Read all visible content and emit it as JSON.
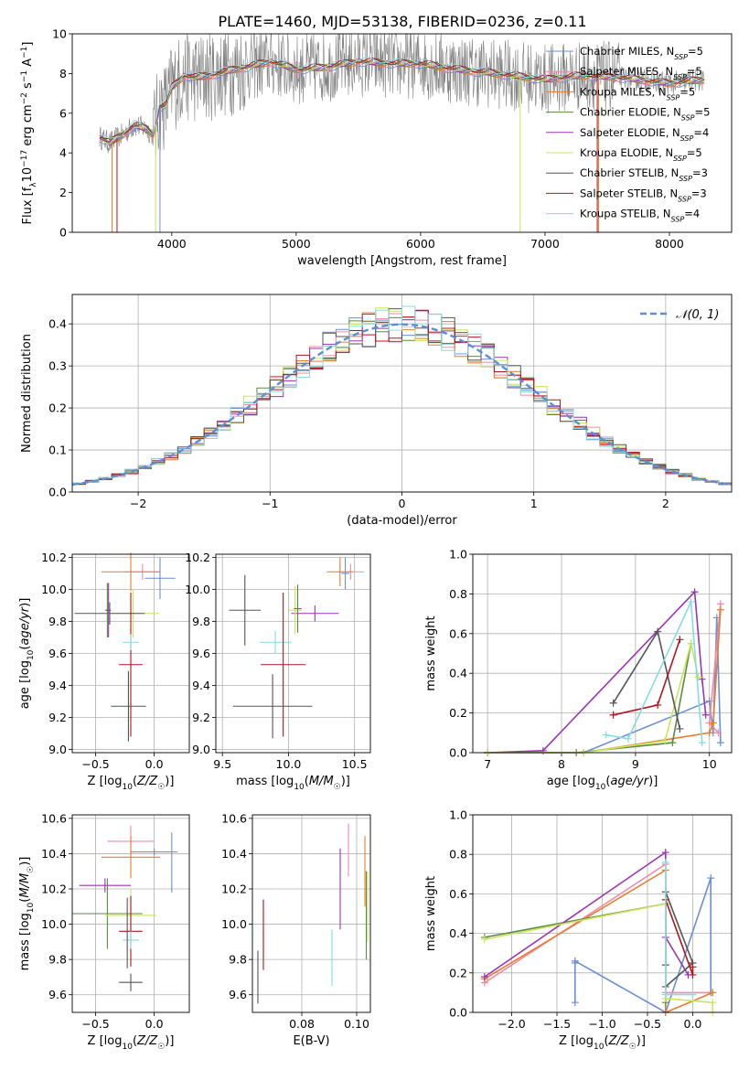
{
  "figure_title": "PLATE=1460, MJD=53138, FIBERID=0236, z=0.11",
  "colors": {
    "chabrier_miles": "#6a8fd8",
    "salpeter_miles": "#f08aa8",
    "kroupa_miles": "#e87d2c",
    "chabrier_elodie": "#5a8a40",
    "salpeter_elodie": "#9a34b4",
    "kroupa_elodie": "#c8e65a",
    "chabrier_stelib": "#555555",
    "salpeter_stelib": "#b0141e",
    "kroupa_stelib": "#86dce0",
    "data": "#808080",
    "gauss": "#5b8fd6"
  },
  "chart_data": [
    {
      "id": "spectrum",
      "type": "line",
      "title": "PLATE=1460, MJD=53138, FIBERID=0236, z=0.11",
      "xlabel": "wavelength [Angstrom, rest frame]",
      "ylabel": "Flux [f_λ 10^-17 erg cm^-2 s^-1 A^-1]",
      "xlim": [
        3200,
        8500
      ],
      "ylim": [
        0,
        10
      ],
      "xticks": [
        4000,
        5000,
        6000,
        7000,
        8000
      ],
      "yticks": [
        0,
        2,
        4,
        6,
        8,
        10
      ],
      "grid": false,
      "legend_position": "right",
      "legend": [
        {
          "label": "Chabrier MILES, N",
          "sub": "SSP",
          "suffix": "=5",
          "color_key": "chabrier_miles"
        },
        {
          "label": "Salpeter MILES, N",
          "sub": "SSP",
          "suffix": "=5",
          "color_key": "salpeter_miles"
        },
        {
          "label": "Kroupa MILES, N",
          "sub": "SSP",
          "suffix": "=5",
          "color_key": "kroupa_miles"
        },
        {
          "label": "Chabrier ELODIE, N",
          "sub": "SSP",
          "suffix": "=5",
          "color_key": "chabrier_elodie"
        },
        {
          "label": "Salpeter ELODIE, N",
          "sub": "SSP",
          "suffix": "=4",
          "color_key": "salpeter_elodie"
        },
        {
          "label": "Kroupa ELODIE, N",
          "sub": "SSP",
          "suffix": "=5",
          "color_key": "kroupa_elodie"
        },
        {
          "label": "Chabrier STELIB, N",
          "sub": "SSP",
          "suffix": "=3",
          "color_key": "chabrier_stelib"
        },
        {
          "label": "Salpeter STELIB, N",
          "sub": "SSP",
          "suffix": "=3",
          "color_key": "salpeter_stelib"
        },
        {
          "label": "Kroupa STELIB, N",
          "sub": "SSP",
          "suffix": "=4",
          "color_key": "kroupa_stelib"
        }
      ],
      "continuum": {
        "x": [
          3420,
          3500,
          3600,
          3700,
          3800,
          3850,
          3900,
          3950,
          4000,
          4100,
          4200,
          4300,
          4500,
          4800,
          5000,
          5200,
          5500,
          5800,
          6000,
          6300,
          6600,
          7000,
          7300,
          7600,
          8000,
          8280
        ],
        "y": [
          4.8,
          4.5,
          4.9,
          5.4,
          5.2,
          4.9,
          6.3,
          6.4,
          7.3,
          7.9,
          7.8,
          7.9,
          8.2,
          8.6,
          8.2,
          8.3,
          8.6,
          8.5,
          8.5,
          8.2,
          8.0,
          7.7,
          7.9,
          7.8,
          7.5,
          7.7
        ]
      },
      "dropouts": [
        {
          "x": 3520,
          "color_key": "kroupa_miles"
        },
        {
          "x": 3560,
          "color_key": "salpeter_stelib"
        },
        {
          "x": 3870,
          "color_key": "kroupa_elodie"
        },
        {
          "x": 3905,
          "color_key": "chabrier_miles"
        },
        {
          "x": 6800,
          "color_key": "kroupa_elodie"
        },
        {
          "x": 7420,
          "color_key": "salpeter_stelib"
        },
        {
          "x": 7430,
          "color_key": "kroupa_miles"
        }
      ],
      "data_noise_range": [
        3850,
        7600
      ]
    },
    {
      "id": "residuals",
      "type": "step",
      "xlabel": "(data-model)/error",
      "ylabel": "Normed distribution",
      "xlim": [
        -2.5,
        2.5
      ],
      "ylim": [
        0,
        0.47
      ],
      "xticks": [
        -2,
        -1,
        0,
        1,
        2
      ],
      "yticks": [
        0.0,
        0.1,
        0.2,
        0.3,
        0.4
      ],
      "grid": true,
      "legend_position": "upper right",
      "legend": [
        {
          "label": "𝒩(0, 1)",
          "color_key": "gauss",
          "dashed": true
        }
      ],
      "bin_width": 0.1
    },
    {
      "id": "age_vs_Z",
      "type": "errorbar",
      "xlabel": "Z [log10(Z/Z☉)]",
      "ylabel": "age [log10(age/yr)]",
      "xlim": [
        -0.7,
        0.3
      ],
      "ylim": [
        8.98,
        10.22
      ],
      "xticks": [
        -0.5,
        0.0
      ],
      "yticks": [
        9.0,
        9.2,
        9.4,
        9.6,
        9.8,
        10.0,
        10.2
      ],
      "grid": true,
      "points": [
        {
          "color_key": "chabrier_miles",
          "x": 0.05,
          "xerr": 0.13,
          "y": 10.07,
          "yerr": 0.13
        },
        {
          "color_key": "salpeter_miles",
          "x": -0.1,
          "xerr": 0.15,
          "y": 10.11,
          "yerr": 0.05
        },
        {
          "color_key": "kroupa_miles",
          "x": -0.2,
          "xerr": 0.25,
          "y": 10.11,
          "yerr": 0.12
        },
        {
          "color_key": "chabrier_elodie",
          "x": -0.4,
          "xerr": 0.02,
          "y": 9.87,
          "yerr": 0.17
        },
        {
          "color_key": "salpeter_elodie",
          "x": -0.39,
          "xerr": 0.02,
          "y": 9.87,
          "yerr": 0.17
        },
        {
          "color_key": "kroupa_elodie",
          "x": -0.18,
          "xerr": 0.22,
          "y": 9.85,
          "yerr": 0.15
        },
        {
          "color_key": "chabrier_stelib",
          "x": -0.38,
          "xerr": 0.3,
          "y": 9.85,
          "yerr": 0.07
        },
        {
          "color_key": "salpeter_stelib",
          "x": -0.2,
          "xerr": 0.1,
          "y": 9.53,
          "yerr": 0.45
        },
        {
          "color_key": "kroupa_stelib",
          "x": -0.2,
          "xerr": 0.07,
          "y": 9.67,
          "yerr": 0.05
        },
        {
          "color_key": "chabrier_stelib",
          "x": -0.22,
          "xerr": 0.15,
          "y": 9.27,
          "yerr": 0.22
        }
      ]
    },
    {
      "id": "age_vs_mass",
      "type": "errorbar",
      "xlabel": "mass [log10(M/M☉)]",
      "ylabel": "",
      "xlim": [
        9.45,
        10.62
      ],
      "ylim": [
        8.98,
        10.22
      ],
      "xticks": [
        9.5,
        10.0,
        10.5
      ],
      "yticks": [
        9.0,
        9.2,
        9.4,
        9.6,
        9.8,
        10.0,
        10.2
      ],
      "grid": true,
      "points": [
        {
          "color_key": "chabrier_miles",
          "x": 10.43,
          "xerr": 0.03,
          "y": 10.1,
          "yerr": 0.1
        },
        {
          "color_key": "salpeter_miles",
          "x": 10.47,
          "xerr": 0.1,
          "y": 10.11,
          "yerr": 0.05
        },
        {
          "color_key": "kroupa_miles",
          "x": 10.39,
          "xerr": 0.1,
          "y": 10.11,
          "yerr": 0.09
        },
        {
          "color_key": "salpeter_elodie",
          "x": 10.2,
          "xerr": 0.18,
          "y": 9.85,
          "yerr": 0.05
        },
        {
          "color_key": "kroupa_elodie",
          "x": 10.05,
          "xerr": 0.05,
          "y": 9.87,
          "yerr": 0.15
        },
        {
          "color_key": "chabrier_elodie",
          "x": 10.07,
          "xerr": 0.03,
          "y": 9.88,
          "yerr": 0.15
        },
        {
          "color_key": "chabrier_stelib",
          "x": 9.67,
          "xerr": 0.12,
          "y": 9.87,
          "yerr": 0.22
        },
        {
          "color_key": "kroupa_stelib",
          "x": 9.9,
          "xerr": 0.12,
          "y": 9.67,
          "yerr": 0.07
        },
        {
          "color_key": "salpeter_stelib",
          "x": 9.96,
          "xerr": 0.17,
          "y": 9.53,
          "yerr": 0.45
        },
        {
          "color_key": "chabrier_stelib",
          "x": 9.88,
          "xerr": 0.3,
          "y": 9.27,
          "yerr": 0.2
        }
      ]
    },
    {
      "id": "weight_vs_age",
      "type": "line",
      "xlabel": "age [log10(age/yr)]",
      "ylabel": "mass weight",
      "xlim": [
        6.8,
        10.3
      ],
      "ylim": [
        0.0,
        1.0
      ],
      "xticks": [
        7,
        8,
        9,
        10
      ],
      "yticks": [
        0.0,
        0.2,
        0.4,
        0.6,
        0.8,
        1.0
      ],
      "grid": true,
      "series": [
        {
          "color_key": "chabrier_miles",
          "x": [
            7.0,
            8.3,
            10.0,
            10.05,
            10.1,
            10.15
          ],
          "y": [
            0.0,
            0.0,
            0.26,
            0.1,
            0.68,
            0.05
          ]
        },
        {
          "color_key": "salpeter_miles",
          "x": [
            10.15,
            10.0,
            10.12
          ],
          "y": [
            0.75,
            0.15,
            0.1
          ]
        },
        {
          "color_key": "kroupa_miles",
          "x": [
            7.0,
            8.3,
            10.0,
            10.05,
            10.15
          ],
          "y": [
            0.0,
            0.0,
            0.1,
            0.15,
            0.72
          ]
        },
        {
          "color_key": "chabrier_elodie",
          "x": [
            7.0,
            8.2,
            9.5,
            9.75
          ],
          "y": [
            0.0,
            0.0,
            0.05,
            0.55
          ]
        },
        {
          "color_key": "salpeter_elodie",
          "x": [
            7.0,
            7.75,
            9.8,
            9.9,
            9.95
          ],
          "y": [
            0.0,
            0.01,
            0.81,
            0.37,
            0.19
          ]
        },
        {
          "color_key": "kroupa_elodie",
          "x": [
            7.0,
            8.3,
            9.4,
            9.75,
            9.85
          ],
          "y": [
            0.0,
            0.0,
            0.06,
            0.55,
            0.38
          ]
        },
        {
          "color_key": "chabrier_stelib",
          "x": [
            8.7,
            9.3,
            9.6
          ],
          "y": [
            0.25,
            0.61,
            0.12
          ]
        },
        {
          "color_key": "salpeter_stelib",
          "x": [
            8.7,
            9.3,
            9.6
          ],
          "y": [
            0.19,
            0.24,
            0.57
          ]
        },
        {
          "color_key": "kroupa_stelib",
          "x": [
            8.6,
            8.9,
            9.75,
            9.9
          ],
          "y": [
            0.09,
            0.07,
            0.76,
            0.05
          ]
        }
      ]
    },
    {
      "id": "mass_vs_Z",
      "type": "errorbar",
      "xlabel": "Z [log10(Z/Z☉)]",
      "ylabel": "mass [log10(M/M☉)]",
      "xlim": [
        -0.7,
        0.3
      ],
      "ylim": [
        9.5,
        10.62
      ],
      "xticks": [
        -0.5,
        0.0
      ],
      "yticks": [
        9.6,
        9.8,
        10.0,
        10.2,
        10.4,
        10.6
      ],
      "grid": true,
      "points": [
        {
          "color_key": "chabrier_miles",
          "x": 0.0,
          "xerr": 0.2,
          "y": 10.41,
          "yerr": 0.02
        },
        {
          "color_key": "chabrier_miles",
          "x": 0.15,
          "xerr": 0.0,
          "y": 10.35,
          "yerr": 0.17
        },
        {
          "color_key": "salpeter_miles",
          "x": -0.2,
          "xerr": 0.2,
          "y": 10.47,
          "yerr": 0.09
        },
        {
          "color_key": "kroupa_miles",
          "x": -0.2,
          "xerr": 0.25,
          "y": 10.38,
          "yerr": 0.12
        },
        {
          "color_key": "salpeter_elodie",
          "x": -0.42,
          "xerr": 0.22,
          "y": 10.22,
          "yerr": 0.04
        },
        {
          "color_key": "chabrier_elodie",
          "x": -0.4,
          "xerr": 0.3,
          "y": 10.06,
          "yerr": 0.2
        },
        {
          "color_key": "kroupa_elodie",
          "x": -0.2,
          "xerr": 0.22,
          "y": 10.05,
          "yerr": 0.15
        },
        {
          "color_key": "salpeter_stelib",
          "x": -0.2,
          "xerr": 0.1,
          "y": 9.96,
          "yerr": 0.2
        },
        {
          "color_key": "kroupa_stelib",
          "x": -0.2,
          "xerr": 0.07,
          "y": 9.91,
          "yerr": 0.05
        },
        {
          "color_key": "chabrier_stelib",
          "x": -0.2,
          "xerr": 0.1,
          "y": 9.67,
          "yerr": 0.05
        },
        {
          "color_key": "chabrier_stelib",
          "x": -0.23,
          "xerr": 0.0,
          "y": 9.95,
          "yerr": 0.2
        }
      ]
    },
    {
      "id": "mass_vs_EBV",
      "type": "errorbar",
      "xlabel": "E(B-V)",
      "ylabel": "",
      "xlim": [
        0.062,
        0.105
      ],
      "ylim": [
        9.5,
        10.62
      ],
      "xticks": [
        0.08,
        0.1
      ],
      "yticks": [
        9.6,
        9.8,
        10.0,
        10.2,
        10.4,
        10.6
      ],
      "grid": true,
      "points": [
        {
          "color_key": "chabrier_stelib",
          "x": 0.064,
          "xerr": 0.0,
          "y": 9.7,
          "yerr": 0.15
        },
        {
          "color_key": "salpeter_stelib",
          "x": 0.066,
          "xerr": 0.0,
          "y": 9.94,
          "yerr": 0.2
        },
        {
          "color_key": "kroupa_stelib",
          "x": 0.091,
          "xerr": 0.0,
          "y": 9.81,
          "yerr": 0.16
        },
        {
          "color_key": "salpeter_elodie",
          "x": 0.094,
          "xerr": 0.0,
          "y": 10.2,
          "yerr": 0.23
        },
        {
          "color_key": "salpeter_miles",
          "x": 0.097,
          "xerr": 0.0,
          "y": 10.42,
          "yerr": 0.15
        },
        {
          "color_key": "kroupa_miles",
          "x": 0.103,
          "xerr": 0.0,
          "y": 10.3,
          "yerr": 0.2
        },
        {
          "color_key": "chabrier_elodie",
          "x": 0.1035,
          "xerr": 0.0,
          "y": 10.05,
          "yerr": 0.25
        },
        {
          "color_key": "kroupa_elodie",
          "x": 0.104,
          "xerr": 0.0,
          "y": 10.1,
          "yerr": 0.2
        }
      ]
    },
    {
      "id": "weight_vs_Z",
      "type": "line",
      "xlabel": "Z [log10(Z/Z☉)]",
      "ylabel": "mass weight",
      "xlim": [
        -2.43,
        0.43
      ],
      "ylim": [
        0.0,
        1.0
      ],
      "xticks": [
        -2.0,
        -1.5,
        -1.0,
        -0.5,
        0.0
      ],
      "yticks": [
        0.0,
        0.2,
        0.4,
        0.6,
        0.8,
        1.0
      ],
      "grid": true,
      "series": [
        {
          "color_key": "chabrier_miles",
          "x": [
            -1.3,
            -1.3,
            -1.3,
            -0.3,
            0.2,
            0.2
          ],
          "y": [
            0.25,
            0.05,
            0.26,
            0.0,
            0.68,
            0.1
          ]
        },
        {
          "color_key": "salpeter_miles",
          "x": [
            -2.3,
            -0.3,
            -0.3,
            0.22
          ],
          "y": [
            0.15,
            0.75,
            0.1,
            0.1
          ]
        },
        {
          "color_key": "kroupa_miles",
          "x": [
            -2.3,
            -0.3,
            -0.3,
            0.22
          ],
          "y": [
            0.17,
            0.72,
            0.0,
            0.1
          ]
        },
        {
          "color_key": "chabrier_elodie",
          "x": [
            -2.3,
            -0.3,
            -0.3
          ],
          "y": [
            0.38,
            0.55,
            0.05
          ]
        },
        {
          "color_key": "salpeter_elodie",
          "x": [
            -2.3,
            -0.3,
            -0.3,
            -0.05
          ],
          "y": [
            0.18,
            0.81,
            0.38,
            0.19
          ]
        },
        {
          "color_key": "kroupa_elodie",
          "x": [
            -2.3,
            -0.3,
            -0.3,
            0.22,
            0.22
          ],
          "y": [
            0.37,
            0.55,
            0.07,
            0.05,
            0.0
          ]
        },
        {
          "color_key": "chabrier_stelib",
          "x": [
            -0.3,
            0.0,
            -0.3,
            -0.3
          ],
          "y": [
            0.13,
            0.25,
            0.61,
            0.24
          ]
        },
        {
          "color_key": "salpeter_stelib",
          "x": [
            -0.3,
            0.0,
            0.0
          ],
          "y": [
            0.57,
            0.19,
            0.23
          ]
        },
        {
          "color_key": "kroupa_stelib",
          "x": [
            -0.3,
            -0.3,
            0.0
          ],
          "y": [
            0.76,
            0.09,
            0.09
          ]
        }
      ]
    }
  ]
}
